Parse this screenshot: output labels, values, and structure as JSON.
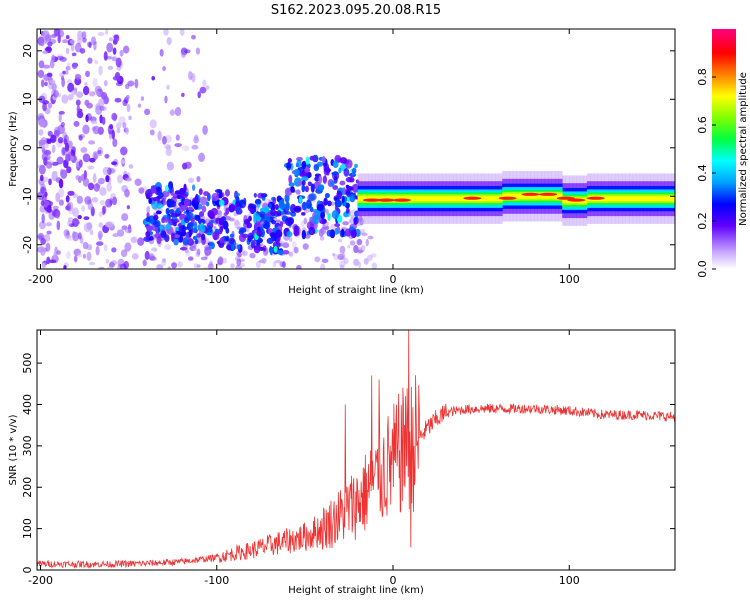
{
  "title": "S162.2023.095.20.08.R15",
  "chart_data": [
    {
      "type": "heatmap",
      "xlabel": "Height of straight line (km)",
      "ylabel": "Frequency (Hz)",
      "xlim": [
        -202,
        160
      ],
      "ylim": [
        -25,
        24.5
      ],
      "xticks": [
        -200,
        -100,
        0,
        100
      ],
      "yticks": [
        20,
        10,
        0,
        -10,
        -20
      ],
      "colorbar": {
        "label": "Normalized spectral amplitude",
        "range": [
          0,
          1
        ],
        "ticks": [
          "0.0",
          "0.2",
          "0.4",
          "0.6",
          "0.8"
        ],
        "colors": [
          "#ffffff",
          "#b080ff",
          "#4000ff",
          "#0000ff",
          "#00a0ff",
          "#00ffff",
          "#00ff40",
          "#80ff00",
          "#ffff00",
          "#ff8000",
          "#ff0000",
          "#ff0080"
        ]
      },
      "features": [
        {
          "x_range": [
            -200,
            -140
          ],
          "freq_range": [
            -25,
            24
          ],
          "amplitude": 0.1,
          "note": "scattered noise"
        },
        {
          "x_range": [
            -140,
            -60
          ],
          "freq_center": -13,
          "amplitude": 0.3
        },
        {
          "x_range": [
            -60,
            -20
          ],
          "freq_center": -10,
          "amplitude": 0.35
        },
        {
          "x_range": [
            -20,
            160
          ],
          "freq_center": -10.5,
          "amplitude": 0.9
        }
      ]
    },
    {
      "type": "line",
      "xlabel": "Height of straight line (km)",
      "ylabel": "SNR (10 * v/v)",
      "xlim": [
        -202,
        160
      ],
      "ylim": [
        0,
        580
      ],
      "xticks": [
        -200,
        -100,
        0,
        100
      ],
      "yticks": [
        0,
        100,
        200,
        300,
        400,
        500
      ],
      "color": "#ee3333",
      "x": [
        -200,
        -180,
        -160,
        -140,
        -120,
        -100,
        -90,
        -80,
        -70,
        -60,
        -50,
        -40,
        -35,
        -30,
        -25,
        -20,
        -15,
        -10,
        -5,
        0,
        5,
        10,
        15,
        20,
        25,
        30,
        40,
        50,
        60,
        80,
        100,
        120,
        140,
        160
      ],
      "values": [
        15,
        14,
        14,
        16,
        20,
        30,
        40,
        48,
        60,
        70,
        80,
        100,
        115,
        130,
        150,
        165,
        190,
        210,
        240,
        260,
        285,
        300,
        320,
        345,
        365,
        380,
        388,
        390,
        390,
        390,
        385,
        375,
        375,
        370
      ],
      "spikes": [
        {
          "x": -27,
          "y": 400
        },
        {
          "x": -12,
          "y": 470
        },
        {
          "x": -8,
          "y": 460
        },
        {
          "x": 7,
          "y": 420
        },
        {
          "x": 9,
          "y": 580
        },
        {
          "x": 10,
          "y": 55
        }
      ]
    }
  ]
}
